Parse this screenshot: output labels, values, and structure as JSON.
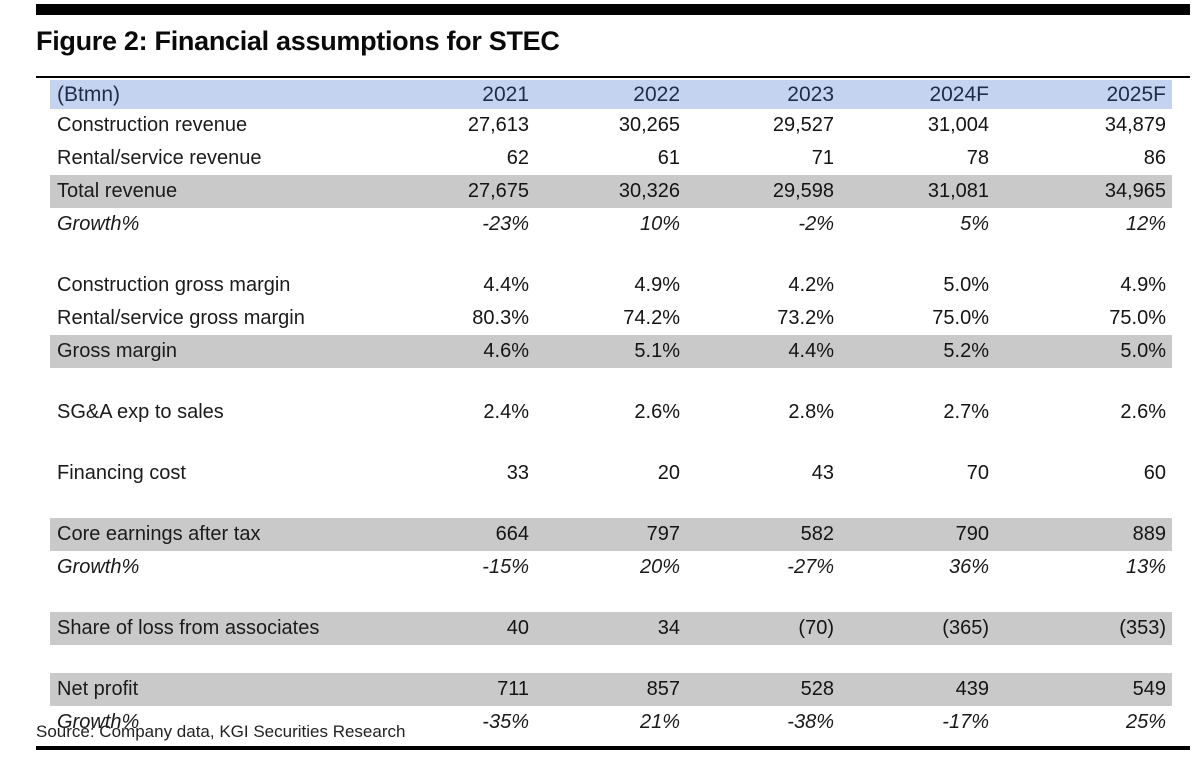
{
  "figure": {
    "title": "Figure 2: Financial assumptions for STEC",
    "source": "Source: Company data, KGI Securities Research"
  },
  "table": {
    "unit_label": "(Btmn)",
    "columns": [
      "2021",
      "2022",
      "2023",
      "2024F",
      "2025F"
    ],
    "rows": [
      {
        "label": "Construction revenue",
        "style": "normal",
        "values": [
          "27,613",
          "30,265",
          "29,527",
          "31,004",
          "34,879"
        ]
      },
      {
        "label": "Rental/service revenue",
        "style": "normal",
        "values": [
          "62",
          "61",
          "71",
          "78",
          "86"
        ]
      },
      {
        "label": "Total revenue",
        "style": "shaded",
        "values": [
          "27,675",
          "30,326",
          "29,598",
          "31,081",
          "34,965"
        ]
      },
      {
        "label": "Growth%",
        "style": "growth",
        "values": [
          "-23%",
          "10%",
          "-2%",
          "5%",
          "12%"
        ]
      },
      {
        "style": "spacer"
      },
      {
        "label": "Construction gross margin",
        "style": "normal",
        "values": [
          "4.4%",
          "4.9%",
          "4.2%",
          "5.0%",
          "4.9%"
        ]
      },
      {
        "label": "Rental/service gross margin",
        "style": "normal",
        "values": [
          "80.3%",
          "74.2%",
          "73.2%",
          "75.0%",
          "75.0%"
        ]
      },
      {
        "label": "Gross margin",
        "style": "shaded",
        "values": [
          "4.6%",
          "5.1%",
          "4.4%",
          "5.2%",
          "5.0%"
        ]
      },
      {
        "style": "spacer"
      },
      {
        "label": "SG&A exp to sales",
        "style": "normal",
        "values": [
          "2.4%",
          "2.6%",
          "2.8%",
          "2.7%",
          "2.6%"
        ]
      },
      {
        "style": "spacer"
      },
      {
        "label": "Financing cost",
        "style": "normal",
        "values": [
          "33",
          "20",
          "43",
          "70",
          "60"
        ]
      },
      {
        "style": "spacer"
      },
      {
        "label": "Core earnings after tax",
        "style": "shaded",
        "values": [
          "664",
          "797",
          "582",
          "790",
          "889"
        ]
      },
      {
        "label": "Growth%",
        "style": "growth",
        "values": [
          "-15%",
          "20%",
          "-27%",
          "36%",
          "13%"
        ]
      },
      {
        "style": "spacer"
      },
      {
        "label": "Share of loss from associates",
        "style": "shaded",
        "values": [
          "40",
          "34",
          "(70)",
          "(365)",
          "(353)"
        ]
      },
      {
        "style": "spacer"
      },
      {
        "label": "Net profit",
        "style": "shaded",
        "values": [
          "711",
          "857",
          "528",
          "439",
          "549"
        ]
      },
      {
        "label": "Growth%",
        "style": "growth",
        "values": [
          "-35%",
          "21%",
          "-38%",
          "-17%",
          "25%"
        ]
      }
    ]
  },
  "colors": {
    "header_bg": "#c4d4f0",
    "header_text": "#202c4a",
    "shaded_row_bg": "#c9c9c9",
    "rule": "#000000"
  }
}
